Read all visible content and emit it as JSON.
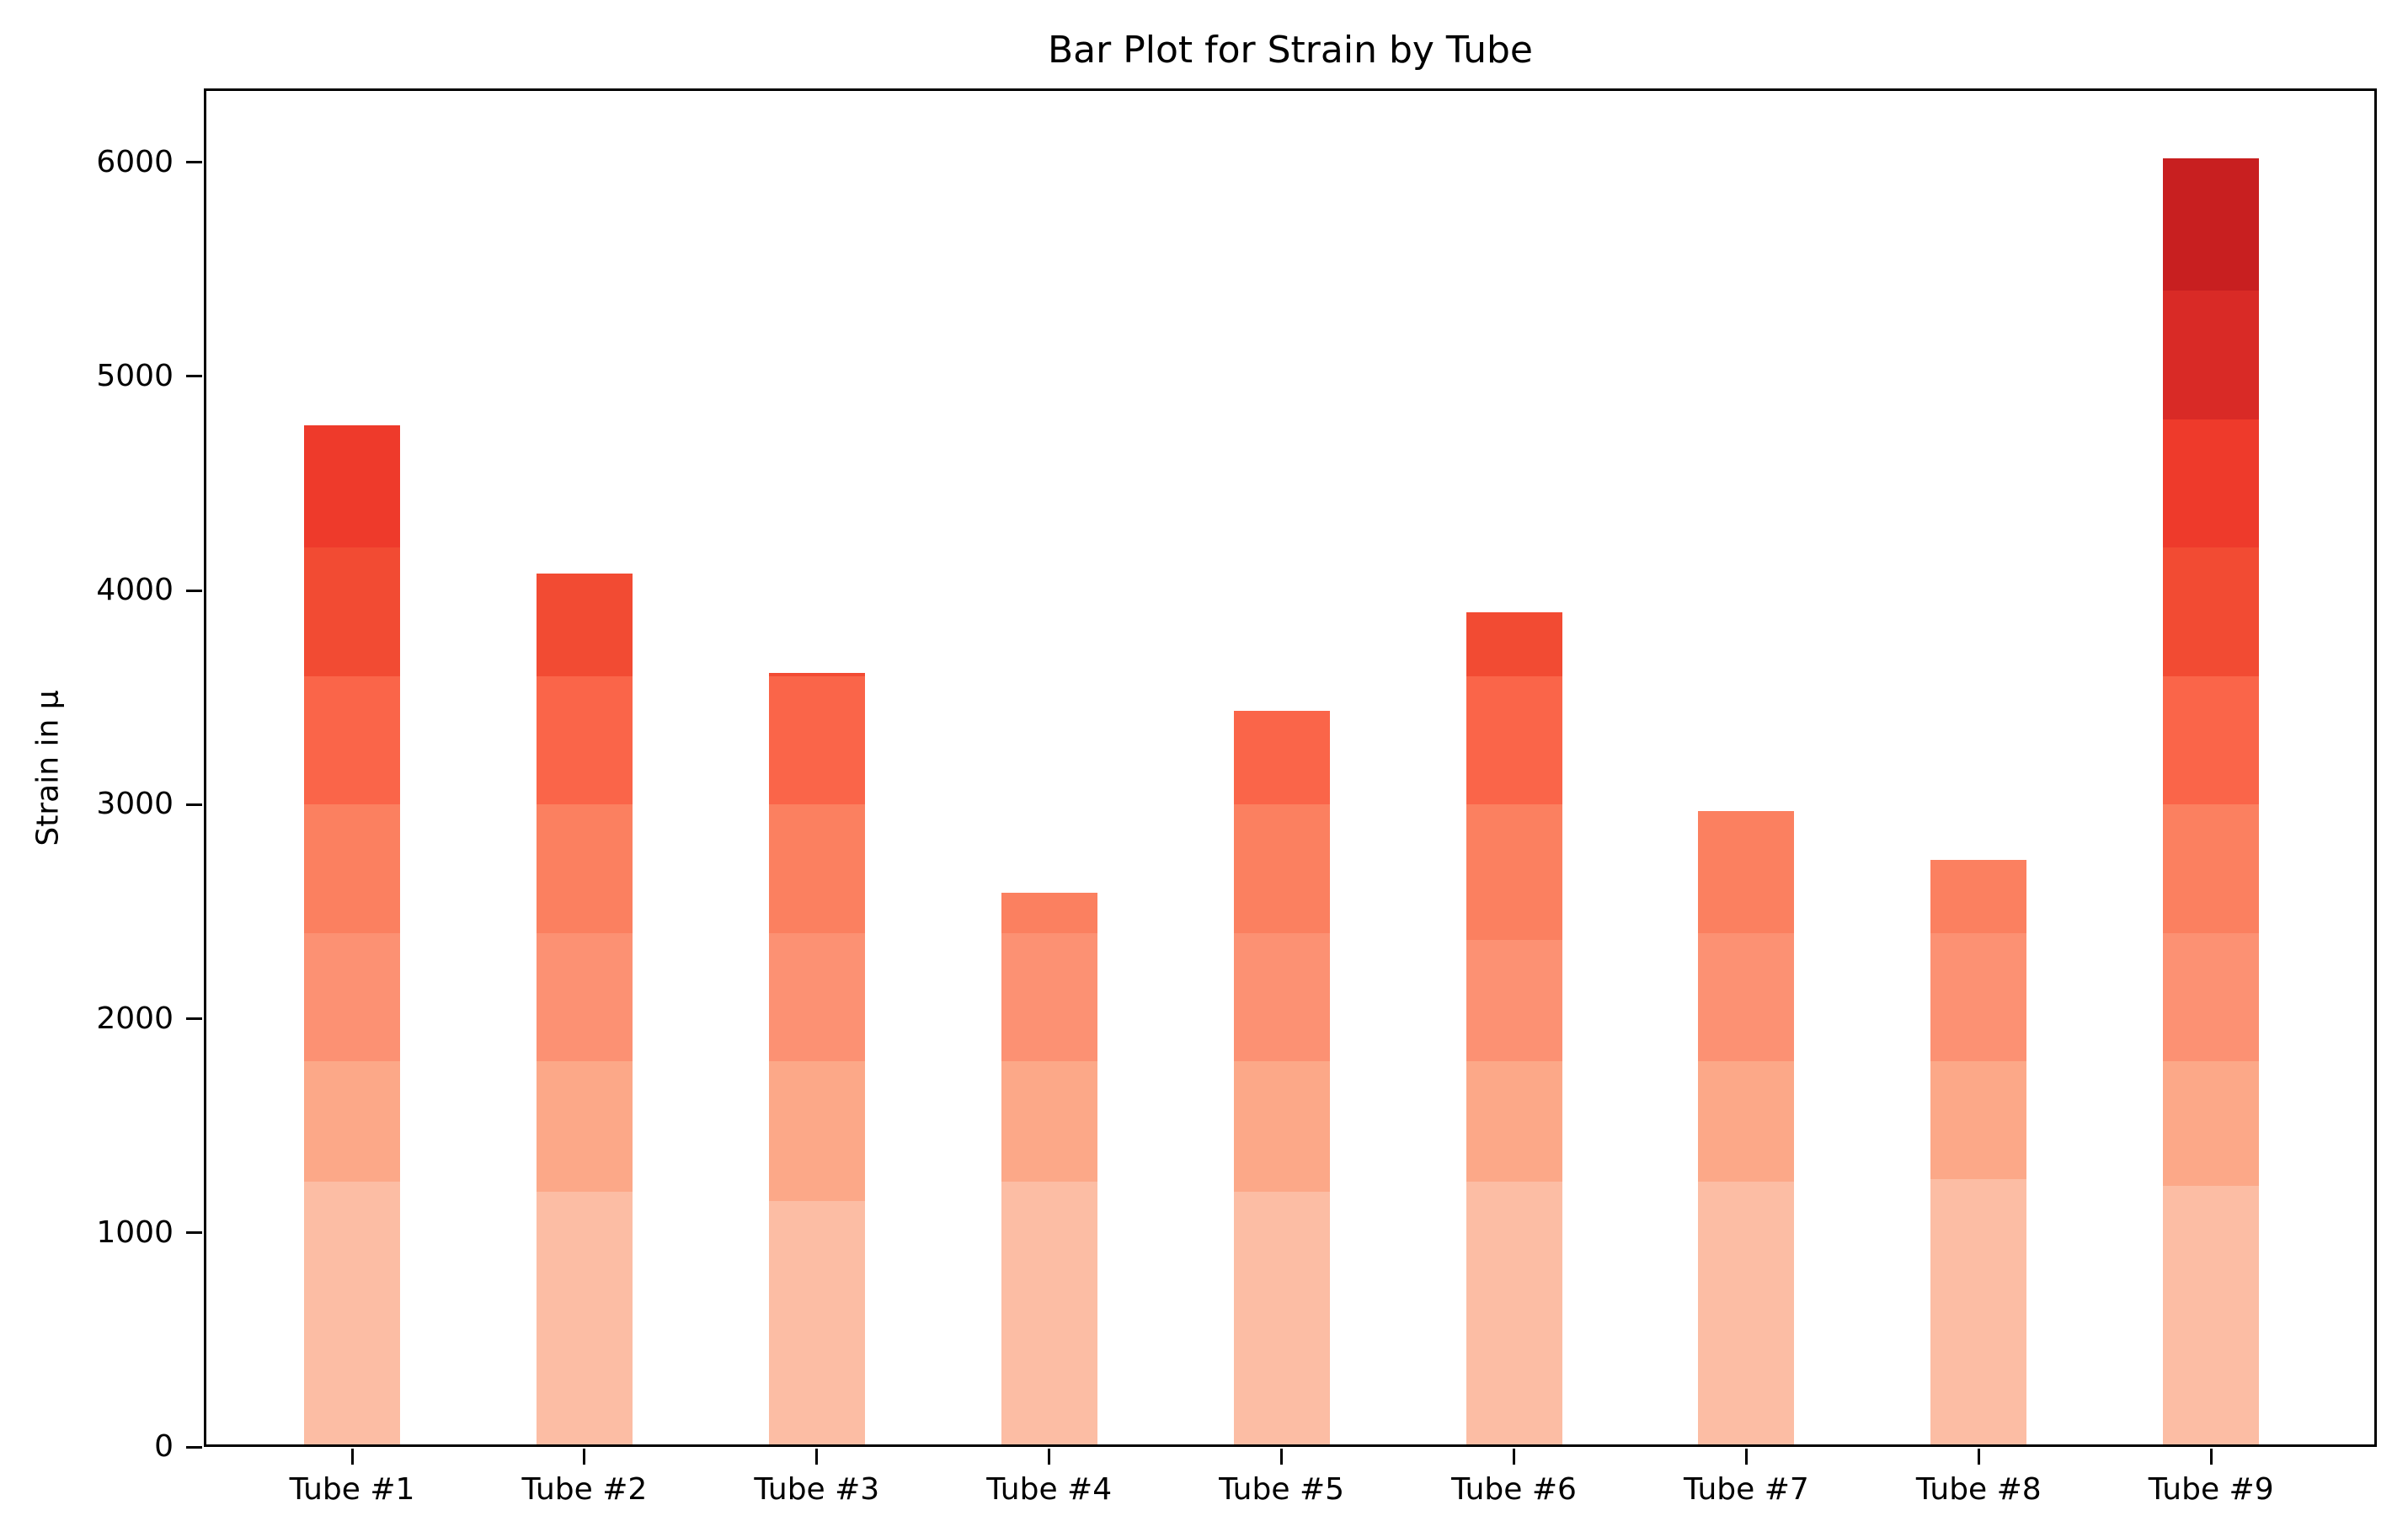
{
  "chart_data": {
    "type": "bar",
    "stacked": true,
    "title": "Bar Plot for Strain by Tube",
    "ylabel": "Strain in μ",
    "xlabel": "",
    "legend": false,
    "grid": false,
    "background": "#ffffff",
    "palette_name": "Reds",
    "segment_colors": [
      "#fcbda4",
      "#fca888",
      "#fc9173",
      "#fb8060",
      "#fa6549",
      "#f24b33",
      "#ee3a2b",
      "#d92a26",
      "#c81f20"
    ],
    "yticks": [
      0,
      1000,
      2000,
      3000,
      4000,
      5000,
      6000
    ],
    "ylim": [
      0,
      6345
    ],
    "categories": [
      "Tube #1",
      "Tube #2",
      "Tube #3",
      "Tube #4",
      "Tube #5",
      "Tube #6",
      "Tube #7",
      "Tube #8",
      "Tube #9"
    ],
    "bars": [
      {
        "label": "Tube #1",
        "total": 4770,
        "boundaries": [
          1240,
          1800,
          2400,
          3000,
          3600,
          4200
        ]
      },
      {
        "label": "Tube #2",
        "total": 4080,
        "boundaries": [
          1190,
          1800,
          2400,
          3000,
          3600
        ]
      },
      {
        "label": "Tube #3",
        "total": 3615,
        "boundaries": [
          1150,
          1800,
          2400,
          3000,
          3600
        ]
      },
      {
        "label": "Tube #4",
        "total": 2590,
        "boundaries": [
          1240,
          1800,
          2400
        ]
      },
      {
        "label": "Tube #5",
        "total": 3440,
        "boundaries": [
          1190,
          1800,
          2400,
          3000
        ]
      },
      {
        "label": "Tube #6",
        "total": 3900,
        "boundaries": [
          1240,
          1800,
          2370,
          3000,
          3600
        ]
      },
      {
        "label": "Tube #7",
        "total": 2970,
        "boundaries": [
          1240,
          1800,
          2400
        ]
      },
      {
        "label": "Tube #8",
        "total": 2740,
        "boundaries": [
          1250,
          1800,
          2400
        ]
      },
      {
        "label": "Tube #9",
        "total": 6020,
        "boundaries": [
          1220,
          1800,
          2400,
          3000,
          3600,
          4200,
          4800,
          5400
        ]
      }
    ]
  }
}
